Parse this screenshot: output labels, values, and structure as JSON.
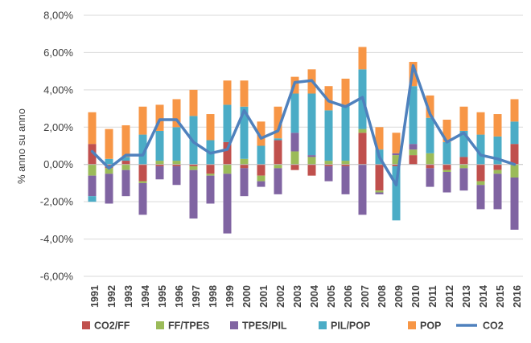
{
  "chart_data": {
    "type": "bar",
    "subtype": "stacked-bar-with-line",
    "ylabel": "% anno su anno",
    "ylim": [
      -6,
      8
    ],
    "yticks": [
      -6,
      -4,
      -2,
      0,
      2,
      4,
      6,
      8
    ],
    "ytick_labels": [
      "-6,00%",
      "-4,00%",
      "-2,00%",
      "0,00%",
      "2,00%",
      "4,00%",
      "6,00%",
      "8,00%"
    ],
    "grid": "horizontal",
    "legend_position": "bottom",
    "categories": [
      "1991",
      "1992",
      "1993",
      "1994",
      "1995",
      "1996",
      "1997",
      "1998",
      "1999",
      "2000",
      "2001",
      "2002",
      "2003",
      "2004",
      "2005",
      "2006",
      "2007",
      "2008",
      "2009",
      "2010",
      "2011",
      "2012",
      "2013",
      "2014",
      "2015",
      "2016"
    ],
    "series": [
      {
        "name": "CO2/FF",
        "kind": "bar",
        "color": "#c0504d",
        "values": [
          1.1,
          -0.2,
          0.2,
          -0.9,
          -0.1,
          -0.1,
          -0.1,
          -0.5,
          1.2,
          -0.2,
          -0.6,
          1.3,
          -0.3,
          -0.6,
          -0.1,
          -0.1,
          1.7,
          -1.4,
          -0.1,
          0.5,
          -0.2,
          -0.3,
          0.4,
          -0.9,
          -0.3,
          1.1
        ]
      },
      {
        "name": "FF/TPES",
        "kind": "bar",
        "color": "#9bbb59",
        "values": [
          -0.6,
          -0.3,
          -0.3,
          -0.1,
          0.2,
          0.2,
          -0.2,
          -0.1,
          -0.5,
          0.3,
          -0.3,
          -0.2,
          0.7,
          0.4,
          0.2,
          0.2,
          0.2,
          -0.1,
          0.5,
          0.3,
          0.6,
          -0.1,
          -0.2,
          -0.2,
          -0.2,
          -0.7
        ]
      },
      {
        "name": "TPES/PIL",
        "kind": "bar",
        "color": "#8064a2",
        "values": [
          -1.1,
          -1.6,
          -1.4,
          -1.7,
          -0.7,
          -1.0,
          -2.6,
          -1.5,
          -3.2,
          -1.5,
          -0.3,
          -1.4,
          1.0,
          0.1,
          -0.8,
          -1.5,
          -2.7,
          -0.1,
          0.1,
          0.3,
          -1.0,
          -1.1,
          -1.2,
          -1.3,
          -1.9,
          -2.8
        ]
      },
      {
        "name": "PIL/POP",
        "kind": "bar",
        "color": "#4bacc6",
        "values": [
          -0.3,
          0.3,
          0.2,
          1.6,
          1.6,
          1.8,
          2.6,
          1.3,
          2.0,
          2.8,
          1.0,
          0.1,
          2.1,
          3.3,
          2.7,
          3.0,
          3.2,
          0.8,
          -2.9,
          3.1,
          1.9,
          1.2,
          1.4,
          1.6,
          1.5,
          1.2
        ]
      },
      {
        "name": "POP",
        "kind": "bar",
        "color": "#f79646",
        "values": [
          1.7,
          1.6,
          1.7,
          1.5,
          1.4,
          1.5,
          1.4,
          1.4,
          1.3,
          1.4,
          1.3,
          1.7,
          0.9,
          1.3,
          1.3,
          1.4,
          1.2,
          1.2,
          1.1,
          1.3,
          1.2,
          1.2,
          1.3,
          1.2,
          1.2,
          1.2
        ]
      },
      {
        "name": "CO2",
        "kind": "line",
        "color": "#4f81bd",
        "values": [
          0.7,
          -0.2,
          0.5,
          0.5,
          2.4,
          2.4,
          1.2,
          0.6,
          0.8,
          2.9,
          1.4,
          1.8,
          4.4,
          4.5,
          3.4,
          3.1,
          3.6,
          0.4,
          -1.1,
          5.3,
          2.7,
          1.2,
          1.7,
          0.5,
          0.3,
          0.0
        ]
      }
    ]
  }
}
